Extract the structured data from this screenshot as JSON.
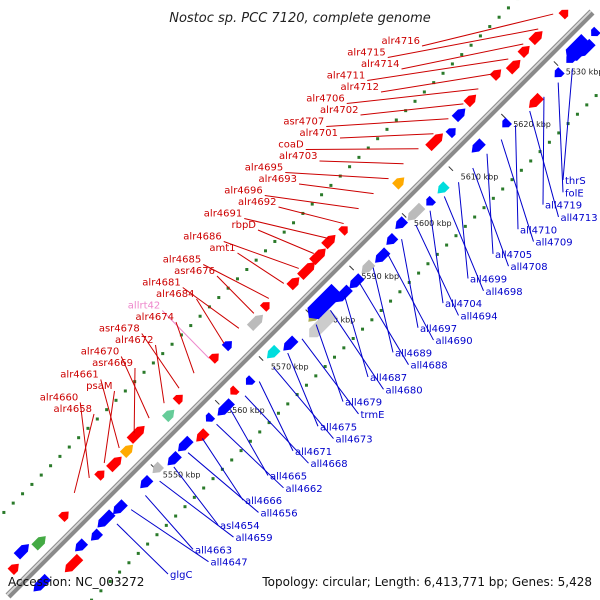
{
  "title": "Nostoc sp. PCC 7120, complete genome",
  "footer": {
    "accession": "Accession: NC_003272",
    "topology": "Topology: circular; Length: 6,413,771 bp; Genes: 5,428"
  },
  "colors": {
    "forward_label": "#cc0000",
    "reverse_label": "#0000cc",
    "rna_label": "#ee88cc",
    "backbone": "#999999",
    "tick": "#2a7a2a"
  },
  "ticks": [
    {
      "label": "5550 kbp"
    },
    {
      "label": "5560 kbp"
    },
    {
      "label": "5570 kbp"
    },
    {
      "label": "5580 kbp"
    },
    {
      "label": "5590 kbp"
    },
    {
      "label": "5600 kbp"
    },
    {
      "label": "5610 kbp"
    },
    {
      "label": "5620 kbp"
    },
    {
      "label": "5630 kbp"
    }
  ],
  "forward_labels": [
    {
      "name": "alr4716"
    },
    {
      "name": "alr4715"
    },
    {
      "name": "alr4714"
    },
    {
      "name": "alr4711"
    },
    {
      "name": "alr4712"
    },
    {
      "name": "alr4706"
    },
    {
      "name": "alr4702"
    },
    {
      "name": "asr4707"
    },
    {
      "name": "alr4701"
    },
    {
      "name": "coaD"
    },
    {
      "name": "alr4703"
    },
    {
      "name": "alr4695"
    },
    {
      "name": "alr4693"
    },
    {
      "name": "alr4696"
    },
    {
      "name": "alr4692"
    },
    {
      "name": "alr4691"
    },
    {
      "name": "rbpD"
    },
    {
      "name": "alr4686"
    },
    {
      "name": "amt1"
    },
    {
      "name": "alr4685"
    },
    {
      "name": "asr4676"
    },
    {
      "name": "alr4681"
    },
    {
      "name": "alr4684"
    },
    {
      "name": "allrt42",
      "rna": true
    },
    {
      "name": "alr4674"
    },
    {
      "name": "asr4678"
    },
    {
      "name": "alr4672"
    },
    {
      "name": "alr4670"
    },
    {
      "name": "asr4669"
    },
    {
      "name": "alr4661"
    },
    {
      "name": "psaM"
    },
    {
      "name": "alr4660"
    },
    {
      "name": "alr4658"
    }
  ],
  "reverse_labels": [
    {
      "name": "thrS"
    },
    {
      "name": "folE"
    },
    {
      "name": "all4719"
    },
    {
      "name": "all4713"
    },
    {
      "name": "all4710"
    },
    {
      "name": "all4709"
    },
    {
      "name": "all4705"
    },
    {
      "name": "all4708"
    },
    {
      "name": "all4699"
    },
    {
      "name": "all4698"
    },
    {
      "name": "all4704"
    },
    {
      "name": "all4694"
    },
    {
      "name": "all4697"
    },
    {
      "name": "all4690"
    },
    {
      "name": "all4689"
    },
    {
      "name": "all4688"
    },
    {
      "name": "all4687"
    },
    {
      "name": "all4680"
    },
    {
      "name": "all4679"
    },
    {
      "name": "trmE"
    },
    {
      "name": "all4675"
    },
    {
      "name": "all4673"
    },
    {
      "name": "all4671"
    },
    {
      "name": "all4668"
    },
    {
      "name": "all4665"
    },
    {
      "name": "all4662"
    },
    {
      "name": "all4666"
    },
    {
      "name": "all4656"
    },
    {
      "name": "asl4654"
    },
    {
      "name": "all4659"
    },
    {
      "name": "all4663"
    },
    {
      "name": "all4647"
    },
    {
      "name": "glgC"
    }
  ]
}
